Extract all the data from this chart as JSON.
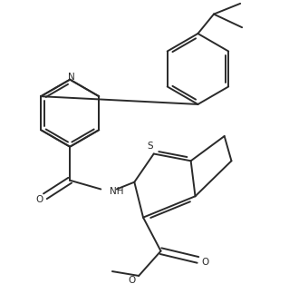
{
  "bg_color": "#ffffff",
  "line_color": "#2a2a2a",
  "line_width": 1.4,
  "figsize": [
    3.19,
    3.13
  ],
  "dpi": 100,
  "xlim": [
    0,
    319
  ],
  "ylim": [
    0,
    313
  ]
}
